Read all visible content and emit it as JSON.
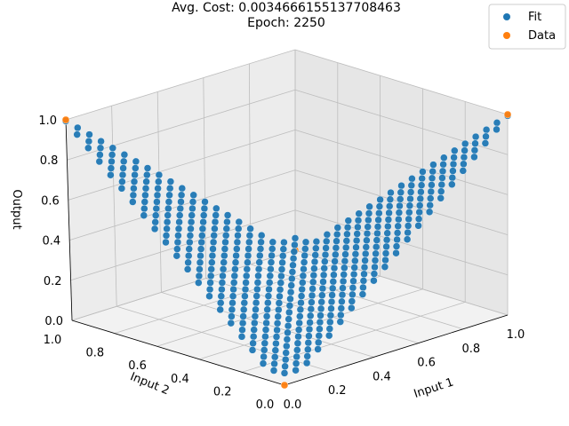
{
  "chart_data": {
    "type": "scatter",
    "title_line1": "Avg. Cost: 0.0034666155137708463",
    "title_line2": "Epoch: 2250",
    "xlabel": "Input 1",
    "ylabel": "Input 2",
    "zlabel": "Output",
    "x_ticks": [
      "0.0",
      "0.2",
      "0.4",
      "0.6",
      "0.8",
      "1.0"
    ],
    "y_ticks": [
      "0.0",
      "0.2",
      "0.4",
      "0.6",
      "0.8",
      "1.0"
    ],
    "z_ticks": [
      "0.0",
      "0.2",
      "0.4",
      "0.6",
      "0.8",
      "1.0"
    ],
    "xlim": [
      0,
      1
    ],
    "ylim": [
      0,
      1
    ],
    "zlim": [
      0,
      1
    ],
    "grid": true,
    "legend_position": "top-right",
    "series": [
      {
        "name": "Fit",
        "color": "#1f77b4",
        "grid_resolution": 21,
        "description_fn": "xor-like surface, low in middle, high at (0,1) and (1,0)"
      },
      {
        "name": "Data",
        "color": "#ff7f0e",
        "points": [
          {
            "x": 0,
            "y": 0,
            "z": 0
          },
          {
            "x": 1,
            "y": 1,
            "z": 0
          },
          {
            "x": 0,
            "y": 1,
            "z": 1
          },
          {
            "x": 1,
            "y": 0,
            "z": 1
          }
        ]
      }
    ]
  }
}
